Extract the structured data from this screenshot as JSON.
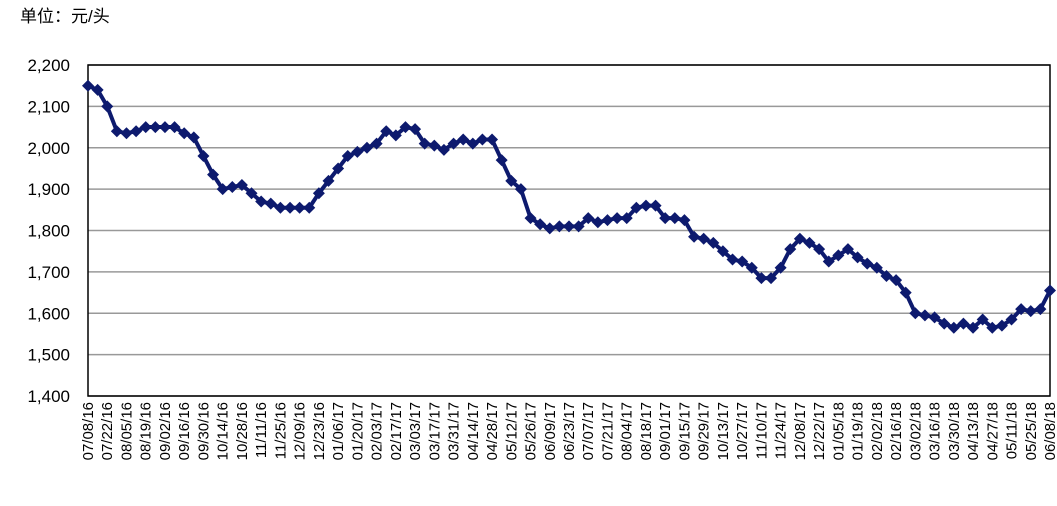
{
  "chart_data": {
    "type": "line",
    "unit_label": "单位：元/头",
    "categories": [
      "07/08/16",
      null,
      "07/22/16",
      null,
      "08/05/16",
      null,
      "08/19/16",
      null,
      "09/02/16",
      null,
      "09/16/16",
      null,
      "09/30/16",
      null,
      "10/14/16",
      null,
      "10/28/16",
      null,
      "11/11/16",
      null,
      "11/25/16",
      null,
      "12/09/16",
      null,
      "12/23/16",
      null,
      "01/06/17",
      null,
      "01/20/17",
      null,
      "02/03/17",
      null,
      "02/17/17",
      null,
      "03/03/17",
      null,
      "03/17/17",
      null,
      "03/31/17",
      null,
      "04/14/17",
      null,
      "04/28/17",
      null,
      "05/12/17",
      null,
      "05/26/17",
      null,
      "06/09/17",
      null,
      "06/23/17",
      null,
      "07/07/17",
      null,
      "07/21/17",
      null,
      "08/04/17",
      null,
      "08/18/17",
      null,
      "09/01/17",
      null,
      "09/15/17",
      null,
      "09/29/17",
      null,
      "10/13/17",
      null,
      "10/27/17",
      null,
      "11/10/17",
      null,
      "11/24/17",
      null,
      "12/08/17",
      null,
      "12/22/17",
      null,
      "01/05/18",
      null,
      "01/19/18",
      null,
      "02/02/18",
      null,
      "02/16/18",
      null,
      "03/02/18",
      null,
      "03/16/18",
      null,
      "03/30/18",
      null,
      "04/13/18",
      null,
      "04/27/18",
      null,
      "05/11/18",
      null,
      "05/25/18",
      null,
      "06/08/18"
    ],
    "values": [
      2150,
      2140,
      2100,
      2040,
      2035,
      2040,
      2050,
      2050,
      2050,
      2050,
      2035,
      2025,
      1980,
      1935,
      1900,
      1905,
      1910,
      1890,
      1870,
      1865,
      1855,
      1855,
      1855,
      1855,
      1890,
      1920,
      1950,
      1980,
      1990,
      2000,
      2010,
      2040,
      2030,
      2050,
      2045,
      2010,
      2005,
      1995,
      2010,
      2020,
      2010,
      2020,
      2020,
      1970,
      1920,
      1900,
      1830,
      1815,
      1805,
      1810,
      1810,
      1810,
      1830,
      1820,
      1825,
      1830,
      1830,
      1855,
      1860,
      1860,
      1830,
      1830,
      1825,
      1785,
      1780,
      1770,
      1750,
      1730,
      1725,
      1710,
      1685,
      1685,
      1710,
      1755,
      1780,
      1770,
      1755,
      1725,
      1740,
      1755,
      1735,
      1720,
      1710,
      1690,
      1680,
      1650,
      1600,
      1595,
      1590,
      1575,
      1565,
      1575,
      1565,
      1585,
      1565,
      1570,
      1585,
      1610,
      1605,
      1610,
      1655
    ],
    "color": "#0d1a6e",
    "ylim": [
      1400,
      2200
    ],
    "yticks": [
      {
        "value": 1400,
        "label": "1,400"
      },
      {
        "value": 1500,
        "label": "1,500"
      },
      {
        "value": 1600,
        "label": "1,600"
      },
      {
        "value": 1700,
        "label": "1,700"
      },
      {
        "value": 1800,
        "label": "1,800"
      },
      {
        "value": 1900,
        "label": "1,900"
      },
      {
        "value": 2000,
        "label": "2,000"
      },
      {
        "value": 2100,
        "label": "2,100"
      },
      {
        "value": 2200,
        "label": "2,200"
      }
    ],
    "grid": true
  }
}
